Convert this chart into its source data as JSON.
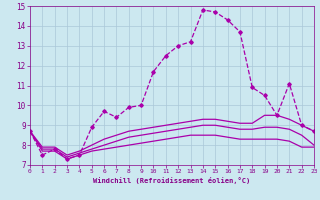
{
  "xlabel": "Windchill (Refroidissement éolien,°C)",
  "xlim": [
    0,
    23
  ],
  "ylim": [
    7,
    15
  ],
  "yticks": [
    7,
    8,
    9,
    10,
    11,
    12,
    13,
    14,
    15
  ],
  "xticks": [
    0,
    1,
    2,
    3,
    4,
    5,
    6,
    7,
    8,
    9,
    10,
    11,
    12,
    13,
    14,
    15,
    16,
    17,
    18,
    19,
    20,
    21,
    22,
    23
  ],
  "background_color": "#cce8f0",
  "grid_color": "#aac8d8",
  "line_color": "#aa00aa",
  "series": [
    {
      "x": [
        0,
        1,
        2,
        3,
        4,
        5,
        6,
        7,
        8,
        9,
        10,
        11,
        12,
        13,
        14,
        15,
        16,
        17,
        18,
        19,
        20,
        21,
        22,
        23
      ],
      "y": [
        8.7,
        7.5,
        7.8,
        7.3,
        7.5,
        8.9,
        9.7,
        9.4,
        9.9,
        10.0,
        11.7,
        12.5,
        13.0,
        13.2,
        14.8,
        14.7,
        14.3,
        13.7,
        10.9,
        10.5,
        9.5,
        11.1,
        9.0,
        8.7
      ],
      "marker": "D",
      "markersize": 1.8,
      "linewidth": 0.9,
      "linestyle": "--"
    },
    {
      "x": [
        0,
        1,
        2,
        3,
        4,
        5,
        6,
        7,
        8,
        9,
        10,
        11,
        12,
        13,
        14,
        15,
        16,
        17,
        18,
        19,
        20,
        21,
        22,
        23
      ],
      "y": [
        8.7,
        7.9,
        7.9,
        7.5,
        7.7,
        8.0,
        8.3,
        8.5,
        8.7,
        8.8,
        8.9,
        9.0,
        9.1,
        9.2,
        9.3,
        9.3,
        9.2,
        9.1,
        9.1,
        9.5,
        9.5,
        9.3,
        9.0,
        8.7
      ],
      "marker": null,
      "markersize": 0,
      "linewidth": 0.9,
      "linestyle": "-"
    },
    {
      "x": [
        0,
        1,
        2,
        3,
        4,
        5,
        6,
        7,
        8,
        9,
        10,
        11,
        12,
        13,
        14,
        15,
        16,
        17,
        18,
        19,
        20,
        21,
        22,
        23
      ],
      "y": [
        8.7,
        7.8,
        7.8,
        7.4,
        7.6,
        7.8,
        8.0,
        8.2,
        8.4,
        8.5,
        8.6,
        8.7,
        8.8,
        8.9,
        9.0,
        9.0,
        8.9,
        8.8,
        8.8,
        8.9,
        8.9,
        8.8,
        8.5,
        8.0
      ],
      "marker": null,
      "markersize": 0,
      "linewidth": 0.9,
      "linestyle": "-"
    },
    {
      "x": [
        0,
        1,
        2,
        3,
        4,
        5,
        6,
        7,
        8,
        9,
        10,
        11,
        12,
        13,
        14,
        15,
        16,
        17,
        18,
        19,
        20,
        21,
        22,
        23
      ],
      "y": [
        8.7,
        7.7,
        7.7,
        7.3,
        7.5,
        7.7,
        7.8,
        7.9,
        8.0,
        8.1,
        8.2,
        8.3,
        8.4,
        8.5,
        8.5,
        8.5,
        8.4,
        8.3,
        8.3,
        8.3,
        8.3,
        8.2,
        7.9,
        7.9
      ],
      "marker": null,
      "markersize": 0,
      "linewidth": 0.9,
      "linestyle": "-"
    }
  ]
}
